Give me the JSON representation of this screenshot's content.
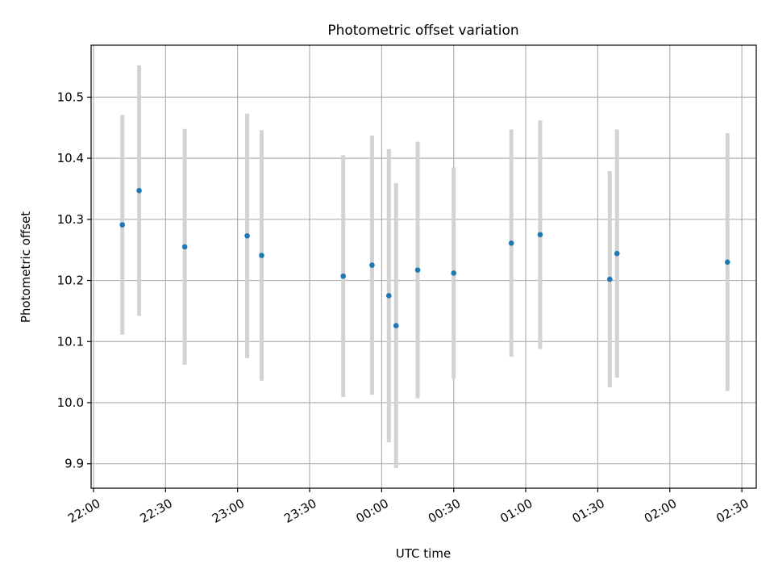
{
  "chart_data": {
    "type": "scatter",
    "title": "Photometric offset variation",
    "xlabel": "UTC time",
    "ylabel": "Photometric offset",
    "x_ticks": [
      "22:00",
      "22:30",
      "23:00",
      "23:30",
      "00:00",
      "00:30",
      "01:00",
      "01:30",
      "02:00",
      "02:30"
    ],
    "y_ticks": [
      "9.9",
      "10.0",
      "10.1",
      "10.2",
      "10.3",
      "10.4",
      "10.5"
    ],
    "xlim": [
      "21:59",
      "02:36"
    ],
    "ylim": [
      9.86,
      10.585
    ],
    "grid": true,
    "colors": {
      "point": "#1f77b4",
      "errorbar": "#d3d3d3",
      "grid": "#b0b0b0"
    },
    "points": [
      {
        "time": "22:12",
        "y": 10.291,
        "err": 0.18
      },
      {
        "time": "22:19",
        "y": 10.347,
        "err": 0.205
      },
      {
        "time": "22:38",
        "y": 10.255,
        "err": 0.193
      },
      {
        "time": "23:04",
        "y": 10.273,
        "err": 0.2
      },
      {
        "time": "23:10",
        "y": 10.241,
        "err": 0.205
      },
      {
        "time": "23:44",
        "y": 10.207,
        "err": 0.198
      },
      {
        "time": "23:56",
        "y": 10.225,
        "err": 0.212
      },
      {
        "time": "00:03",
        "y": 10.175,
        "err": 0.24
      },
      {
        "time": "00:06",
        "y": 10.126,
        "err": 0.233
      },
      {
        "time": "00:15",
        "y": 10.217,
        "err": 0.21
      },
      {
        "time": "00:30",
        "y": 10.212,
        "err": 0.173
      },
      {
        "time": "00:54",
        "y": 10.261,
        "err": 0.186
      },
      {
        "time": "01:06",
        "y": 10.275,
        "err": 0.187
      },
      {
        "time": "01:35",
        "y": 10.202,
        "err": 0.177
      },
      {
        "time": "01:38",
        "y": 10.244,
        "err": 0.203
      },
      {
        "time": "02:24",
        "y": 10.23,
        "err": 0.211
      }
    ]
  }
}
